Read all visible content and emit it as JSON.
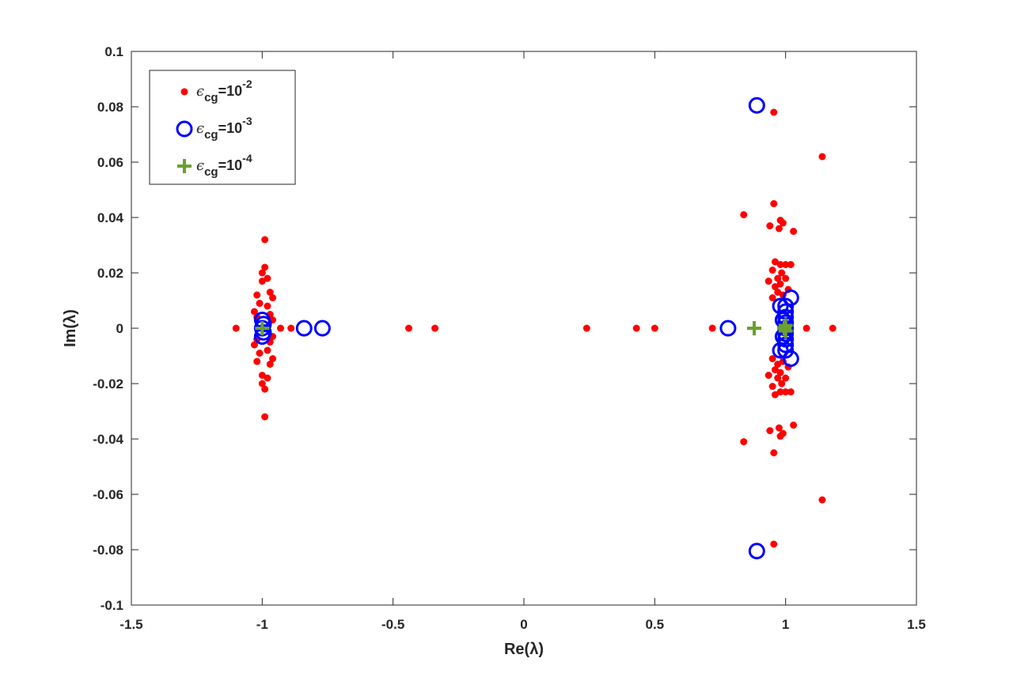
{
  "colors": {
    "red": "#ff0000",
    "blue": "#0000ff",
    "green": "#6aa02e",
    "axis": "#262626"
  },
  "chart_data": {
    "type": "scatter",
    "xlabel": "Re(λ)",
    "ylabel": "Im(λ)",
    "xlim": [
      -1.5,
      1.5
    ],
    "ylim": [
      -0.1,
      0.1
    ],
    "xticks": [
      -1.5,
      -1,
      -0.5,
      0,
      0.5,
      1,
      1.5
    ],
    "xtick_labels": [
      "-1.5",
      "-1",
      "-0.5",
      "0",
      "0.5",
      "1",
      "1.5"
    ],
    "yticks": [
      -0.1,
      -0.08,
      -0.06,
      -0.04,
      -0.02,
      0,
      0.02,
      0.04,
      0.06,
      0.08,
      0.1
    ],
    "ytick_labels": [
      "-0.1",
      "-0.08",
      "-0.06",
      "-0.04",
      "-0.02",
      "0",
      "0.02",
      "0.04",
      "0.06",
      "0.08",
      "0.1"
    ],
    "grid": false,
    "legend_position": "top-left",
    "legend": [
      {
        "prefix": "ϵ",
        "sub": "cg",
        "mid": "=10",
        "sup": "-2",
        "marker": "dot",
        "color": "#ff0000"
      },
      {
        "prefix": "ϵ",
        "sub": "cg",
        "mid": "=10",
        "sup": "-3",
        "marker": "circle",
        "color": "#0000ff"
      },
      {
        "prefix": "ϵ",
        "sub": "cg",
        "mid": "=10",
        "sup": "-4",
        "marker": "plus",
        "color": "#6aa02e"
      }
    ],
    "series": [
      {
        "name": "ϵcg=10-2",
        "marker": "dot",
        "color": "#ff0000",
        "points": [
          [
            -1.1,
            0
          ],
          [
            -0.93,
            0
          ],
          [
            -0.89,
            0
          ],
          [
            -0.44,
            0
          ],
          [
            -0.34,
            0
          ],
          [
            0.24,
            0
          ],
          [
            0.43,
            0
          ],
          [
            0.5,
            0
          ],
          [
            0.72,
            0
          ],
          [
            1.08,
            0
          ],
          [
            1.18,
            0
          ],
          [
            -0.99,
            0.032
          ],
          [
            -0.99,
            0.022
          ],
          [
            -1.0,
            0.02
          ],
          [
            -0.98,
            0.018
          ],
          [
            -1.0,
            0.017
          ],
          [
            -0.97,
            0.013
          ],
          [
            -1.02,
            0.012
          ],
          [
            -0.96,
            0.011
          ],
          [
            -1.01,
            0.009
          ],
          [
            -0.98,
            0.008
          ],
          [
            -1.03,
            0.006
          ],
          [
            -0.97,
            0.005
          ],
          [
            -1.02,
            0.004
          ],
          [
            -0.96,
            0.003
          ],
          [
            -0.99,
            -0.032
          ],
          [
            -0.99,
            -0.022
          ],
          [
            -1.0,
            -0.02
          ],
          [
            -0.98,
            -0.018
          ],
          [
            -1.0,
            -0.017
          ],
          [
            -0.97,
            -0.013
          ],
          [
            -1.02,
            -0.012
          ],
          [
            -0.96,
            -0.011
          ],
          [
            -1.01,
            -0.009
          ],
          [
            -0.98,
            -0.008
          ],
          [
            -1.03,
            -0.006
          ],
          [
            -0.97,
            -0.005
          ],
          [
            -1.02,
            -0.004
          ],
          [
            -0.96,
            -0.003
          ],
          [
            0.955,
            0.078
          ],
          [
            1.14,
            0.062
          ],
          [
            0.955,
            0.045
          ],
          [
            0.84,
            0.041
          ],
          [
            0.98,
            0.039
          ],
          [
            0.99,
            0.038
          ],
          [
            0.94,
            0.037
          ],
          [
            0.975,
            0.036
          ],
          [
            1.03,
            0.035
          ],
          [
            0.96,
            0.024
          ],
          [
            0.98,
            0.023
          ],
          [
            1.0,
            0.023
          ],
          [
            1.02,
            0.023
          ],
          [
            0.95,
            0.021
          ],
          [
            0.985,
            0.02
          ],
          [
            0.97,
            0.018
          ],
          [
            1.0,
            0.018
          ],
          [
            0.935,
            0.017
          ],
          [
            0.98,
            0.016
          ],
          [
            0.96,
            0.015
          ],
          [
            1.01,
            0.014
          ],
          [
            0.97,
            0.013
          ],
          [
            0.99,
            0.012
          ],
          [
            0.95,
            0.011
          ],
          [
            0.955,
            -0.078
          ],
          [
            1.14,
            -0.062
          ],
          [
            0.955,
            -0.045
          ],
          [
            0.84,
            -0.041
          ],
          [
            0.98,
            -0.039
          ],
          [
            0.99,
            -0.038
          ],
          [
            0.94,
            -0.037
          ],
          [
            0.975,
            -0.036
          ],
          [
            1.03,
            -0.035
          ],
          [
            0.96,
            -0.024
          ],
          [
            0.98,
            -0.023
          ],
          [
            1.0,
            -0.023
          ],
          [
            1.02,
            -0.023
          ],
          [
            0.95,
            -0.021
          ],
          [
            0.985,
            -0.02
          ],
          [
            0.97,
            -0.018
          ],
          [
            1.0,
            -0.018
          ],
          [
            0.935,
            -0.017
          ],
          [
            0.98,
            -0.016
          ],
          [
            0.96,
            -0.015
          ],
          [
            1.01,
            -0.014
          ],
          [
            0.97,
            -0.013
          ],
          [
            0.99,
            -0.012
          ],
          [
            0.95,
            -0.011
          ]
        ]
      },
      {
        "name": "ϵcg=10-3",
        "marker": "circle",
        "color": "#0000ff",
        "points": [
          [
            0.89,
            0.0805
          ],
          [
            0.89,
            -0.0805
          ],
          [
            -0.84,
            0
          ],
          [
            -0.77,
            0
          ],
          [
            0.78,
            0
          ],
          [
            -1.0,
            0
          ],
          [
            -1.0,
            0.003
          ],
          [
            -1.0,
            -0.003
          ],
          [
            -0.995,
            0.0015
          ],
          [
            -0.995,
            -0.0015
          ],
          [
            1.0,
            0
          ],
          [
            1.0,
            0.002
          ],
          [
            1.0,
            -0.002
          ],
          [
            1.0,
            0.004
          ],
          [
            1.0,
            -0.004
          ],
          [
            1.0,
            0.006
          ],
          [
            1.0,
            -0.006
          ],
          [
            1.0,
            0.008
          ],
          [
            1.0,
            -0.008
          ],
          [
            0.98,
            0.008
          ],
          [
            0.98,
            -0.008
          ],
          [
            1.02,
            0.011
          ],
          [
            1.02,
            -0.011
          ],
          [
            0.99,
            0.003
          ],
          [
            0.99,
            -0.003
          ]
        ]
      },
      {
        "name": "ϵcg=10-4",
        "marker": "plus",
        "color": "#6aa02e",
        "points": [
          [
            -1.0,
            0
          ],
          [
            0.88,
            0
          ],
          [
            0.995,
            0
          ],
          [
            1.0,
            0.001
          ],
          [
            1.0,
            -0.001
          ]
        ]
      }
    ]
  }
}
